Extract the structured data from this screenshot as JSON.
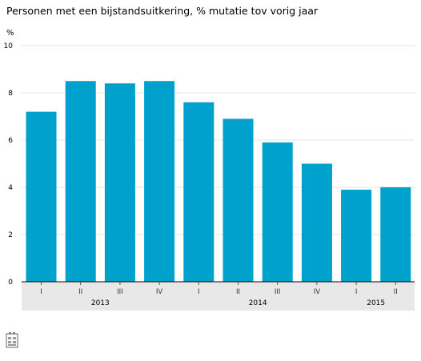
{
  "chart_data": {
    "type": "bar",
    "title": "Personen met een bijstandsuitkering, % mutatie tov vorig jaar",
    "ylabel": "%",
    "xlabel": "",
    "ylim": [
      0,
      10
    ],
    "yticks": [
      0,
      2,
      4,
      6,
      8,
      10
    ],
    "grid": true,
    "categories": [
      "I",
      "II",
      "III",
      "IV",
      "I",
      "II",
      "III",
      "IV",
      "I",
      "II"
    ],
    "years": [
      {
        "label": "2013",
        "start": 0,
        "end": 3
      },
      {
        "label": "2014",
        "start": 4,
        "end": 7
      },
      {
        "label": "2015",
        "start": 8,
        "end": 9
      }
    ],
    "values": [
      7.2,
      8.5,
      8.4,
      8.5,
      7.6,
      6.9,
      5.9,
      5.0,
      3.9,
      4.0
    ],
    "colors": {
      "bar": "#00a1cd",
      "gridline": "#e6e6e6",
      "axis": "#000000",
      "category_band": "#e8e8e8"
    },
    "icon": "cbs-logo-icon"
  }
}
